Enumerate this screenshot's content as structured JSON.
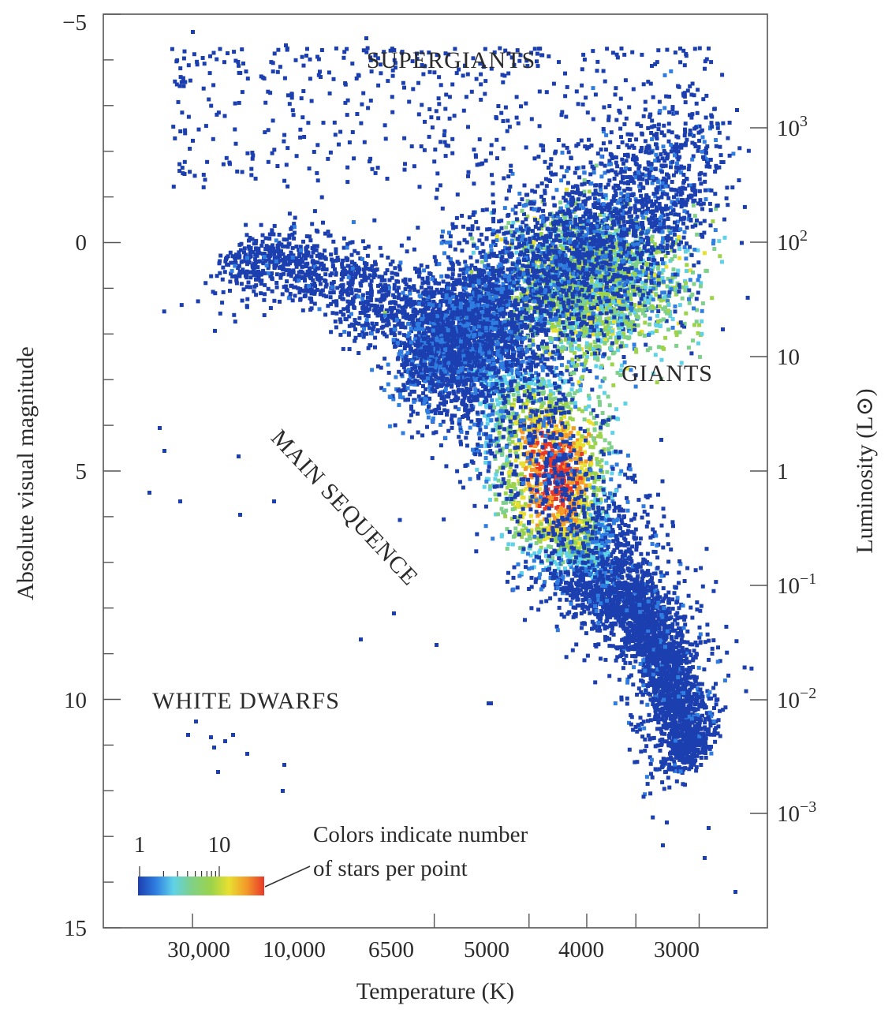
{
  "chart_data": {
    "type": "scatter",
    "title": "",
    "xlabel": "Temperature (K)",
    "ylabel": "Absolute visual magnitude",
    "y2label": "Luminosity (L⊙)",
    "x_scale": "log, decreasing left to right",
    "xlim": [
      45000,
      2200
    ],
    "ylim": [
      -5,
      15
    ],
    "y_inverted": true,
    "x_ticks": [
      {
        "value": 30000,
        "label": "30,000"
      },
      {
        "value": 10000,
        "label": "10,000"
      },
      {
        "value": 6500,
        "label": "6500"
      },
      {
        "value": 5000,
        "label": "5000"
      },
      {
        "value": 4000,
        "label": "4000"
      },
      {
        "value": 3000,
        "label": "3000"
      }
    ],
    "y_ticks": [
      {
        "value": -5,
        "label": "−5"
      },
      {
        "value": 0,
        "label": "0"
      },
      {
        "value": 5,
        "label": "5"
      },
      {
        "value": 10,
        "label": "10"
      },
      {
        "value": 15,
        "label": "15"
      }
    ],
    "y2_ticks": [
      {
        "base": "10",
        "exp": "3"
      },
      {
        "base": "10",
        "exp": "2"
      },
      {
        "base": "10",
        "exp": ""
      },
      {
        "base": "1",
        "exp": ""
      },
      {
        "base": "10",
        "exp": "−1"
      },
      {
        "base": "10",
        "exp": "−2"
      },
      {
        "base": "10",
        "exp": "−3"
      }
    ],
    "annotations": {
      "supergiants": "SUPERGIANTS",
      "giants": "GIANTS",
      "main_sequence": "MAIN SEQUENCE",
      "white_dwarfs": "WHITE DWARFS"
    },
    "colorbar": {
      "min_label": "1",
      "mid_label": "10",
      "note_line1": "Colors indicate number",
      "note_line2": "of stars per point",
      "colors": [
        "#1c3fb0",
        "#2f7de0",
        "#5fd2e8",
        "#7fd08a",
        "#9cd34a",
        "#e8e030",
        "#f39a2a",
        "#e8382a"
      ]
    },
    "density_regions": [
      {
        "name": "MAIN SEQUENCE",
        "path": [
          [
            25000,
            0.2
          ],
          [
            15000,
            0.8
          ],
          [
            10000,
            1.8
          ],
          [
            8000,
            2.7
          ],
          [
            6800,
            3.6
          ],
          [
            6000,
            4.6
          ],
          [
            5600,
            5.6
          ],
          [
            5200,
            6.5
          ],
          [
            4700,
            7.2
          ],
          [
            4200,
            7.8
          ],
          [
            3800,
            8.4
          ],
          [
            3500,
            9.3
          ],
          [
            3300,
            10.3
          ],
          [
            3100,
            11.3
          ]
        ]
      },
      {
        "name": "GIANTS",
        "center": [
          4900,
          0.9
        ],
        "extent": [
          4000,
          -1.5
        ]
      },
      {
        "name": "SUPERGIANTS",
        "y_range": [
          -4.2,
          -1.5
        ]
      },
      {
        "name": "WHITE DWARFS",
        "center": [
          20000,
          11
        ],
        "count": 10
      }
    ]
  }
}
